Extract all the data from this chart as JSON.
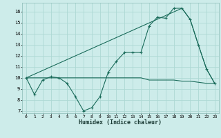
{
  "xlabel": "Humidex (Indice chaleur)",
  "background_color": "#cdecea",
  "grid_color": "#add8d4",
  "line_color": "#1a6b5a",
  "xlim": [
    -0.5,
    23.5
  ],
  "ylim": [
    6.8,
    16.8
  ],
  "yticks": [
    7,
    8,
    9,
    10,
    11,
    12,
    13,
    14,
    15,
    16
  ],
  "xticks": [
    0,
    1,
    2,
    3,
    4,
    5,
    6,
    7,
    8,
    9,
    10,
    11,
    12,
    13,
    14,
    15,
    16,
    17,
    18,
    19,
    20,
    21,
    22,
    23
  ],
  "series1_x": [
    0,
    1,
    2,
    3,
    4,
    5,
    6,
    7,
    8,
    9,
    10,
    11,
    12,
    13,
    14,
    15,
    16,
    17,
    18,
    19,
    20,
    21,
    22,
    23
  ],
  "series1_y": [
    10.0,
    8.5,
    9.8,
    10.1,
    10.0,
    9.5,
    8.3,
    7.0,
    7.3,
    8.3,
    10.5,
    11.5,
    12.3,
    12.3,
    12.3,
    14.7,
    15.5,
    15.4,
    16.3,
    16.3,
    15.3,
    13.0,
    10.8,
    9.5
  ],
  "series2_x": [
    0,
    1,
    2,
    3,
    4,
    5,
    6,
    7,
    8,
    9,
    10,
    11,
    12,
    13,
    14,
    15,
    16,
    17,
    18,
    19,
    20,
    21,
    22,
    23
  ],
  "series2_y": [
    10.0,
    10.0,
    10.0,
    10.0,
    10.0,
    10.0,
    10.0,
    10.0,
    10.0,
    10.0,
    10.0,
    10.0,
    10.0,
    10.0,
    10.0,
    9.8,
    9.8,
    9.8,
    9.8,
    9.7,
    9.7,
    9.6,
    9.5,
    9.5
  ],
  "series3_x": [
    0,
    19,
    20,
    21,
    22,
    23
  ],
  "series3_y": [
    10.0,
    16.3,
    15.3,
    13.0,
    10.8,
    9.5
  ]
}
